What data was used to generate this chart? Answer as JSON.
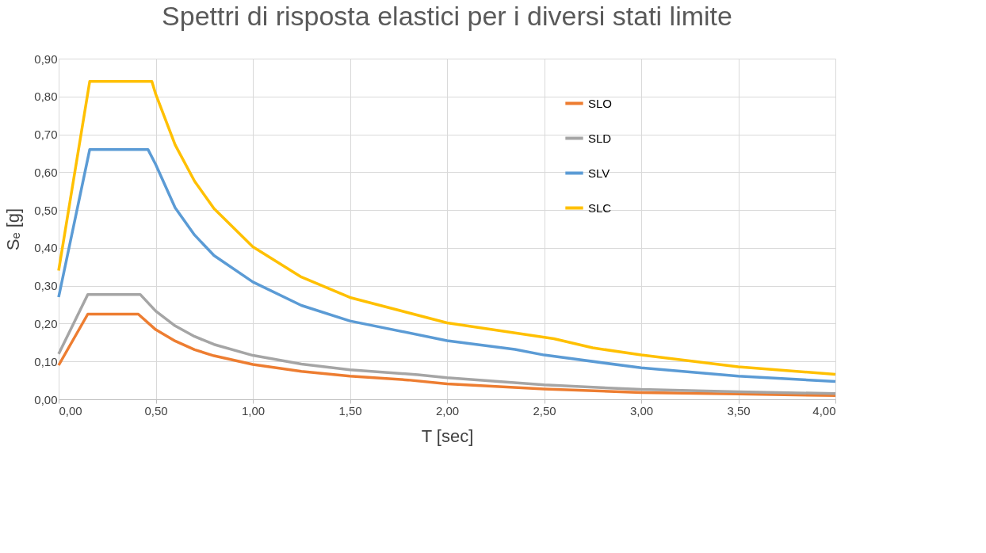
{
  "chart_data": {
    "type": "line",
    "title": "Spettri di risposta elastici per i diversi stati limite",
    "xlabel": "T [sec]",
    "ylabel": "Sₑ [g]",
    "series": [
      {
        "name": "SLO",
        "color": "#ed7d31",
        "x": [
          0,
          0.15,
          0.41,
          0.5,
          0.6,
          0.7,
          0.8,
          1.0,
          1.25,
          1.5,
          1.8,
          2.0,
          2.5,
          3.0,
          3.5,
          4.0
        ],
        "values": [
          0.09,
          0.225,
          0.225,
          0.184,
          0.154,
          0.131,
          0.115,
          0.092,
          0.074,
          0.061,
          0.051,
          0.041,
          0.027,
          0.018,
          0.014,
          0.01
        ]
      },
      {
        "name": "SLD",
        "color": "#a5a5a5",
        "x": [
          0,
          0.15,
          0.42,
          0.5,
          0.6,
          0.7,
          0.8,
          1.0,
          1.25,
          1.5,
          1.85,
          2.0,
          2.5,
          3.0,
          3.5,
          4.0
        ],
        "values": [
          0.12,
          0.277,
          0.277,
          0.233,
          0.194,
          0.166,
          0.145,
          0.116,
          0.093,
          0.078,
          0.065,
          0.057,
          0.038,
          0.026,
          0.02,
          0.015
        ]
      },
      {
        "name": "SLV",
        "color": "#5b9bd5",
        "x": [
          0,
          0.16,
          0.46,
          0.5,
          0.6,
          0.7,
          0.8,
          1.0,
          1.25,
          1.5,
          2.0,
          2.35,
          2.5,
          3.0,
          3.5,
          4.0
        ],
        "values": [
          0.27,
          0.66,
          0.66,
          0.62,
          0.506,
          0.434,
          0.38,
          0.31,
          0.248,
          0.207,
          0.155,
          0.132,
          0.117,
          0.083,
          0.061,
          0.047
        ]
      },
      {
        "name": "SLC",
        "color": "#ffc000",
        "x": [
          0,
          0.16,
          0.48,
          0.5,
          0.6,
          0.7,
          0.8,
          1.0,
          1.25,
          1.5,
          2.0,
          2.55,
          2.75,
          3.0,
          3.5,
          4.0
        ],
        "values": [
          0.34,
          0.84,
          0.84,
          0.806,
          0.672,
          0.576,
          0.504,
          0.403,
          0.323,
          0.269,
          0.202,
          0.16,
          0.136,
          0.117,
          0.086,
          0.066
        ]
      }
    ],
    "xlim": [
      0,
      4
    ],
    "xticks": [
      {
        "value": 0,
        "label": "0,00"
      },
      {
        "value": 0.5,
        "label": "0,50"
      },
      {
        "value": 1,
        "label": "1,00"
      },
      {
        "value": 1.5,
        "label": "1,50"
      },
      {
        "value": 2,
        "label": "2,00"
      },
      {
        "value": 2.5,
        "label": "2,50"
      },
      {
        "value": 3,
        "label": "3,00"
      },
      {
        "value": 3.5,
        "label": "3,50"
      },
      {
        "value": 4,
        "label": "4,00"
      }
    ],
    "ylim": [
      0,
      0.9
    ],
    "yticks": [
      {
        "value": 0,
        "label": "0,00"
      },
      {
        "value": 0.1,
        "label": "0,10"
      },
      {
        "value": 0.2,
        "label": "0,20"
      },
      {
        "value": 0.3,
        "label": "0,30"
      },
      {
        "value": 0.4,
        "label": "0,40"
      },
      {
        "value": 0.5,
        "label": "0,50"
      },
      {
        "value": 0.6,
        "label": "0,60"
      },
      {
        "value": 0.7,
        "label": "0,70"
      },
      {
        "value": 0.8,
        "label": "0,80"
      },
      {
        "value": 0.9,
        "label": "0,90"
      }
    ],
    "grid": true,
    "legend": "top right",
    "marker": "none",
    "line_style": "solid"
  }
}
